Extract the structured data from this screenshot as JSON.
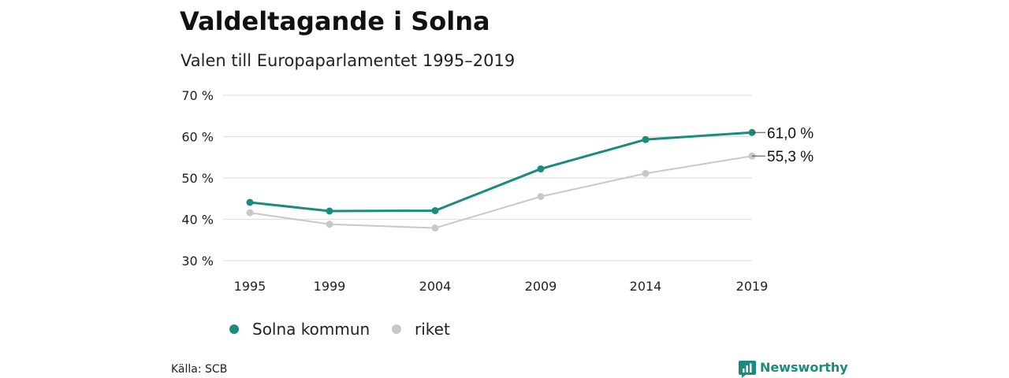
{
  "chart_data": {
    "type": "line",
    "title": "Valdeltagande i Solna",
    "subtitle": "Valen till Europaparlamentet 1995–2019",
    "x": [
      "1995",
      "1999",
      "2004",
      "2009",
      "2014",
      "2019"
    ],
    "ylim": [
      30,
      70
    ],
    "yticks": [
      70,
      60,
      50,
      40,
      30
    ],
    "ytick_labels": [
      "70 %",
      "60 %",
      "50 %",
      "40 %",
      "30 %"
    ],
    "grid": true,
    "series": [
      {
        "name": "Solna kommun",
        "color": "#1a8c7e",
        "values": [
          44.1,
          42.0,
          42.1,
          52.2,
          59.3,
          61.0
        ],
        "end_label": "61,0 %"
      },
      {
        "name": "riket",
        "color": "#c8c8c8",
        "values": [
          41.6,
          38.8,
          37.9,
          45.5,
          51.1,
          55.3
        ],
        "end_label": "55,3 %"
      }
    ],
    "legend_position": "bottom-left",
    "source": "Källa: SCB"
  },
  "brand": {
    "name": "Newsworthy",
    "icon": "bar-chart-badge-icon",
    "color": "#1a8c7e"
  }
}
